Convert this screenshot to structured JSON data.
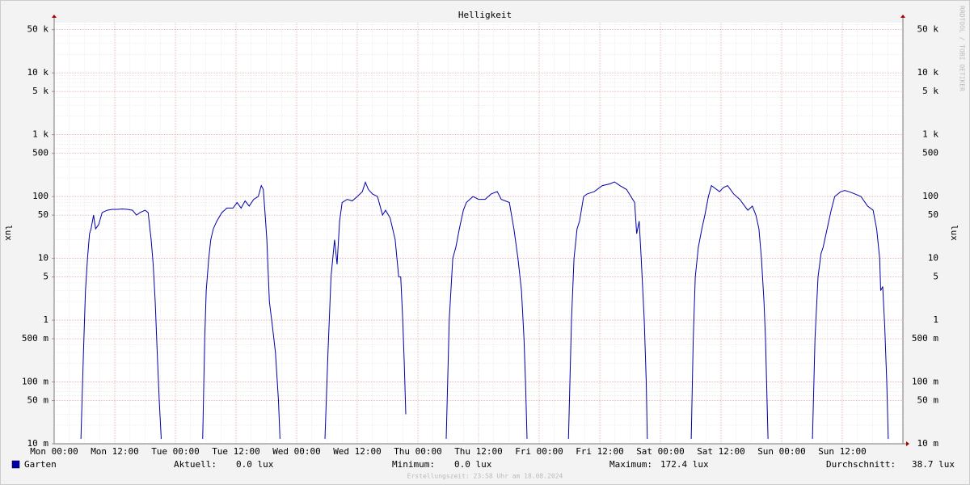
{
  "chart_data": {
    "type": "line",
    "title": "Helligkeit",
    "y_label": "lux",
    "watermark": "RRDTOOL / TOBI OETIKER",
    "log_scale": true,
    "grid": true,
    "xlim": [
      0,
      168
    ],
    "ylim": [
      0.01,
      65000
    ],
    "xticks": [
      {
        "value": 0,
        "label": "Mon 00:00"
      },
      {
        "value": 12,
        "label": "Mon 12:00"
      },
      {
        "value": 24,
        "label": "Tue 00:00"
      },
      {
        "value": 36,
        "label": "Tue 12:00"
      },
      {
        "value": 48,
        "label": "Wed 00:00"
      },
      {
        "value": 60,
        "label": "Wed 12:00"
      },
      {
        "value": 72,
        "label": "Thu 00:00"
      },
      {
        "value": 84,
        "label": "Thu 12:00"
      },
      {
        "value": 96,
        "label": "Fri 00:00"
      },
      {
        "value": 108,
        "label": "Fri 12:00"
      },
      {
        "value": 120,
        "label": "Sat 00:00"
      },
      {
        "value": 132,
        "label": "Sat 12:00"
      },
      {
        "value": 144,
        "label": "Sun 00:00"
      },
      {
        "value": 156,
        "label": "Sun 12:00"
      }
    ],
    "yticks": [
      {
        "value": 0.01,
        "label": "10 m"
      },
      {
        "value": 0.05,
        "label": "50 m"
      },
      {
        "value": 0.1,
        "label": "100 m"
      },
      {
        "value": 0.5,
        "label": "500 m"
      },
      1,
      5,
      10,
      50,
      100,
      500,
      {
        "value": 1000,
        "label": "1 k"
      },
      {
        "value": 5000,
        "label": "5 k"
      },
      {
        "value": 10000,
        "label": "10 k"
      },
      {
        "value": 50000,
        "label": "50 k"
      }
    ],
    "x": [
      5.3,
      5.8,
      6.2,
      6.6,
      7,
      7.3,
      7.8,
      8.2,
      8.8,
      9.5,
      10.5,
      11.5,
      12.5,
      13.5,
      14.5,
      15.5,
      16.3,
      17,
      18,
      18.6,
      19.2,
      19.6,
      20,
      20.4,
      20.8,
      21.2,
      22,
      29.4,
      29.8,
      30.1,
      30.6,
      31,
      31.5,
      32.2,
      33.2,
      34.2,
      35.4,
      36.2,
      37,
      37.8,
      38.6,
      39.5,
      40.4,
      41,
      41.4,
      41.7,
      42.1,
      42.6,
      43.2,
      43.8,
      44.4,
      44.7,
      46,
      53.6,
      54.2,
      54.8,
      55.5,
      56,
      56.5,
      57,
      58,
      59,
      60,
      61,
      61.6,
      62.2,
      63,
      64,
      65,
      65.6,
      66.5,
      67.5,
      68.2,
      68.6,
      69,
      69.3,
      69.6,
      70,
      77.6,
      78.2,
      78.9,
      79.5,
      80.2,
      81,
      81.6,
      82.9,
      84,
      85.3,
      86.5,
      87.7,
      88.5,
      90.1,
      91,
      91.8,
      92.5,
      93,
      93.3,
      93.6,
      94,
      101.8,
      102.4,
      102.9,
      103.5,
      104,
      104.8,
      105.5,
      106.9,
      108.5,
      110,
      110.9,
      112,
      113.3,
      114.9,
      115.3,
      115.8,
      116.2,
      116.8,
      117.2,
      117.4,
      118,
      126.1,
      126.5,
      126.9,
      127.5,
      128.2,
      128.8,
      129.5,
      130.1,
      131.7,
      132.5,
      133.3,
      134.5,
      135.7,
      137.3,
      138.2,
      138.9,
      139.5,
      140,
      140.5,
      140.8,
      141.3,
      142,
      150.1,
      150.6,
      151.2,
      151.8,
      152.2,
      153,
      153.8,
      154.5,
      155.7,
      156.5,
      157.3,
      158.5,
      159.7,
      161,
      162.1,
      162.8,
      163.4,
      163.6,
      164,
      164.4,
      164.8,
      165.1
    ],
    "series": [
      {
        "name": "Garten",
        "color": "#0000aa",
        "values": [
          0.012,
          0.3,
          3,
          10,
          25,
          30,
          50,
          30,
          35,
          55,
          60,
          62,
          62,
          63,
          62,
          60,
          50,
          55,
          60,
          55,
          20,
          8,
          2,
          0.3,
          0.05,
          0.012,
          null,
          0.012,
          0.5,
          3,
          10,
          20,
          30,
          40,
          55,
          65,
          65,
          80,
          65,
          85,
          70,
          90,
          100,
          150,
          130,
          60,
          20,
          2,
          0.8,
          0.3,
          0.05,
          0.012,
          null,
          0.012,
          0.3,
          5,
          20,
          8,
          40,
          80,
          90,
          85,
          100,
          120,
          170,
          130,
          110,
          100,
          50,
          60,
          45,
          20,
          5,
          5,
          1,
          0.2,
          0.03,
          null,
          0.012,
          1,
          10,
          15,
          30,
          60,
          80,
          100,
          90,
          90,
          110,
          120,
          90,
          80,
          30,
          10,
          3,
          0.5,
          0.1,
          0.012,
          null,
          0.012,
          1,
          10,
          30,
          40,
          100,
          110,
          120,
          150,
          160,
          172.4,
          150,
          130,
          80,
          25,
          40,
          10,
          1,
          0.1,
          0.012,
          null,
          0.012,
          0.5,
          5,
          15,
          30,
          50,
          100,
          150,
          120,
          140,
          150,
          110,
          90,
          60,
          70,
          50,
          30,
          10,
          2,
          0.5,
          0.012,
          null,
          0.012,
          0.5,
          5,
          12,
          15,
          30,
          60,
          100,
          120,
          125,
          120,
          110,
          100,
          70,
          60,
          30,
          10,
          3,
          3.5,
          0.8,
          0.1,
          0.012
        ]
      }
    ],
    "stats": [
      {
        "label": "Aktuell:",
        "value": "0.0 lux"
      },
      {
        "label": "Minimum:",
        "value": "0.0 lux"
      },
      {
        "label": "Maximum:",
        "value": "172.4 lux"
      },
      {
        "label": "Durchschnitt:",
        "value": "38.7 lux"
      }
    ],
    "footer": "Erstellungszeit: 23:58 Uhr am 18.08.2024"
  }
}
